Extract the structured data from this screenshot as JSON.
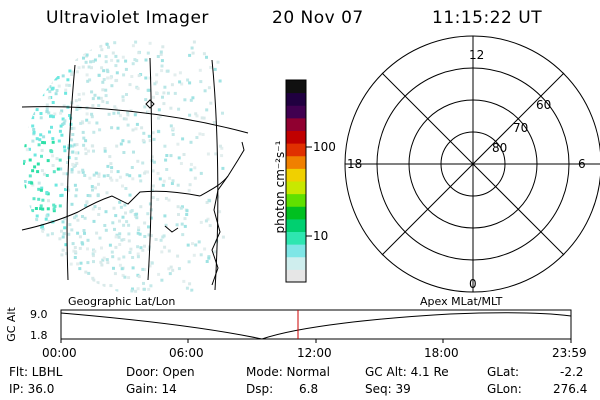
{
  "header": {
    "title": "Ultraviolet Imager",
    "date": "20 Nov 07",
    "time": "11:15:22 UT"
  },
  "colorbar": {
    "unit_label": "photon cm⁻²s⁻¹",
    "tick_100": "100",
    "tick_10": "10",
    "colors": [
      "#e6e6e6",
      "#cfeeee",
      "#7fe6e6",
      "#2ee6b0",
      "#00d070",
      "#00c020",
      "#60e000",
      "#c8e800",
      "#f0d000",
      "#f08000",
      "#e03000",
      "#c00000",
      "#900030",
      "#400050",
      "#200040",
      "#101010"
    ]
  },
  "polar": {
    "labels": {
      "top": "12",
      "bottom": "0",
      "left": "18",
      "right": "6",
      "r60": "60",
      "r70": "70",
      "r80": "80"
    }
  },
  "timeline": {
    "left_title": "Geographic Lat/Lon",
    "right_title": "Apex MLat/MLT",
    "axis_label": "GC Alt",
    "y_top": "9.0",
    "y_bottom": "1.8",
    "ticks": [
      "00:00",
      "06:00",
      "12:00",
      "18:00",
      "23:59"
    ],
    "marker_color": "#cc0000"
  },
  "status": {
    "flt": "Flt: LBHL",
    "ip": "IP: 36.0",
    "door": "Door: Open",
    "gain": "Gain: 14",
    "mode": "Mode: Normal",
    "dsp": "Dsp:",
    "dsp_val": "6.8",
    "gcalt": "GC Alt: 4.1 Re",
    "seq": "Seq: 39",
    "glat": "GLat:",
    "glat_val": "-2.2",
    "glon": "GLon:",
    "glon_val": "276.4"
  }
}
